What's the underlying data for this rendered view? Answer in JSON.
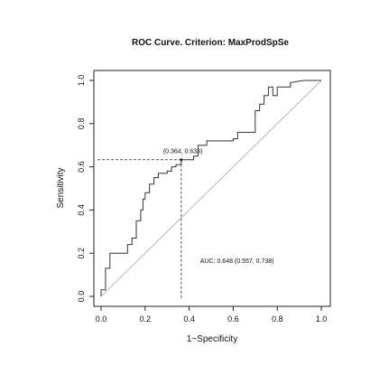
{
  "chart_data": {
    "type": "line",
    "title": "ROC Curve. Criterion: MaxProdSpSe",
    "xlabel": "1−Specificity",
    "ylabel": "Sensitivity",
    "xlim": [
      0,
      1
    ],
    "ylim": [
      0,
      1
    ],
    "xticks": [
      "0.0",
      "0.2",
      "0.4",
      "0.6",
      "0.8",
      "1.0"
    ],
    "yticks": [
      "0.0",
      "0.2",
      "0.4",
      "0.6",
      "0.8",
      "1.0"
    ],
    "grid": false,
    "legend": "none",
    "series": [
      {
        "x": [
          0,
          0,
          0.02,
          0.02,
          0.04,
          0.04,
          0.12,
          0.12,
          0.14,
          0.14,
          0.16,
          0.16,
          0.18,
          0.18,
          0.19,
          0.19,
          0.2,
          0.2,
          0.22,
          0.22,
          0.24,
          0.24,
          0.26,
          0.26,
          0.3,
          0.3,
          0.32,
          0.32,
          0.34,
          0.34,
          0.364,
          0.364,
          0.42,
          0.42,
          0.44,
          0.44,
          0.48,
          0.48,
          0.6,
          0.6,
          0.62,
          0.62,
          0.7,
          0.7,
          0.72,
          0.72,
          0.74,
          0.74,
          0.76,
          0.76,
          0.78,
          0.78,
          0.8,
          0.8,
          0.86,
          0.86,
          0.92,
          1.0
        ],
        "y": [
          0,
          0.03,
          0.03,
          0.13,
          0.13,
          0.2,
          0.2,
          0.24,
          0.24,
          0.27,
          0.27,
          0.35,
          0.35,
          0.4,
          0.4,
          0.45,
          0.45,
          0.48,
          0.48,
          0.52,
          0.52,
          0.55,
          0.55,
          0.57,
          0.57,
          0.58,
          0.58,
          0.6,
          0.6,
          0.61,
          0.61,
          0.633,
          0.633,
          0.65,
          0.65,
          0.7,
          0.7,
          0.72,
          0.72,
          0.73,
          0.73,
          0.76,
          0.76,
          0.86,
          0.86,
          0.89,
          0.89,
          0.93,
          0.93,
          0.97,
          0.97,
          0.93,
          0.93,
          0.97,
          0.97,
          0.99,
          1.0,
          1.0
        ],
        "color": "#333333"
      }
    ],
    "diagonal": {
      "x": [
        0,
        1
      ],
      "y": [
        0,
        1
      ],
      "color": "#b8b8b8"
    },
    "cutoff_point": {
      "x": 0.364,
      "y": 0.633,
      "label": "(0.364, 0.633)"
    },
    "annotations": [
      "AUC: 0.648 (0.557, 0.738)"
    ]
  }
}
